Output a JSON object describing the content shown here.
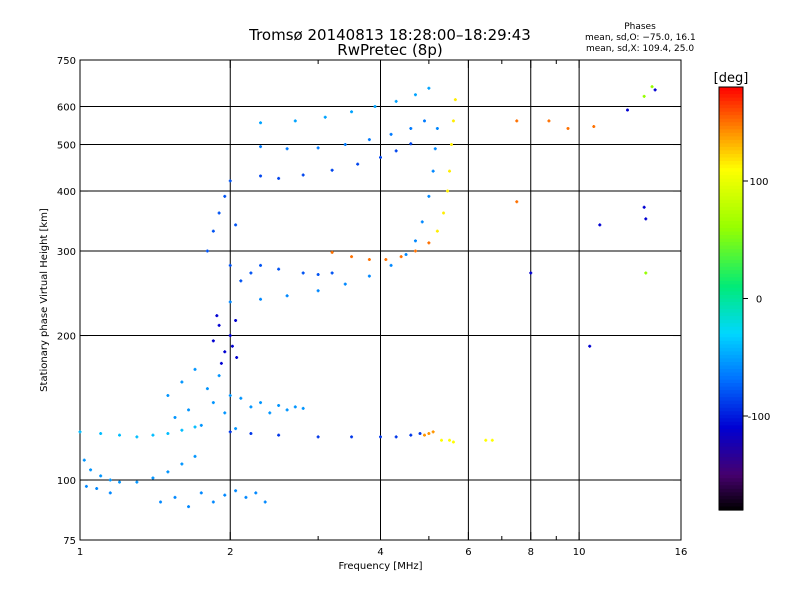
{
  "header": {
    "title_line1": "Tromsø 20140813 18:28:00–18:29:43",
    "title_line2": "RwPretec (8p)",
    "stats_title": "Phases",
    "stats_line1": "mean, sd,O: −75.0, 16.1",
    "stats_line2": "mean, sd,X: 109.4, 25.0"
  },
  "chart_data": {
    "type": "scatter",
    "xlabel": "Frequency [MHz]",
    "ylabel": "Stationary phase Virtual Height [km]",
    "x_scale": "log",
    "y_scale": "log",
    "xlim": [
      1,
      16
    ],
    "ylim": [
      75,
      750
    ],
    "x_ticks": [
      1,
      2,
      4,
      6,
      8,
      10,
      16
    ],
    "x_minor_ticks": [
      3,
      5,
      7,
      9
    ],
    "y_ticks": [
      75,
      100,
      200,
      300,
      400,
      500,
      600,
      750
    ],
    "grid_x": [
      2,
      4,
      6,
      8,
      10
    ],
    "grid_y": [
      100,
      200,
      300,
      400,
      500,
      600
    ],
    "colorbar": {
      "label": "[deg]",
      "range": [
        -180,
        180
      ],
      "ticks": [
        100,
        0,
        -100
      ],
      "colormap": "black-purple-blue-cyan-green-yellow-red"
    },
    "series": [
      {
        "color_deg": -40,
        "points": [
          [
            1.0,
            126
          ],
          [
            1.1,
            125
          ],
          [
            1.2,
            124
          ],
          [
            1.3,
            123
          ],
          [
            1.4,
            124
          ],
          [
            1.5,
            125
          ],
          [
            1.6,
            127
          ],
          [
            1.7,
            129
          ]
        ]
      },
      {
        "color_deg": -55,
        "points": [
          [
            1.02,
            110
          ],
          [
            1.05,
            105
          ],
          [
            1.1,
            102
          ],
          [
            1.15,
            100
          ],
          [
            1.2,
            99
          ],
          [
            1.3,
            99
          ],
          [
            1.4,
            101
          ],
          [
            1.5,
            104
          ],
          [
            1.6,
            108
          ],
          [
            1.7,
            112
          ]
        ]
      },
      {
        "color_deg": -60,
        "points": [
          [
            1.03,
            97
          ],
          [
            1.08,
            96
          ],
          [
            1.15,
            94
          ],
          [
            1.45,
            90
          ],
          [
            1.55,
            92
          ],
          [
            1.65,
            88
          ],
          [
            1.75,
            94
          ],
          [
            1.85,
            90
          ],
          [
            1.95,
            93
          ],
          [
            2.05,
            95
          ],
          [
            2.15,
            92
          ],
          [
            2.25,
            94
          ],
          [
            2.35,
            90
          ]
        ]
      },
      {
        "color_deg": -55,
        "points": [
          [
            1.5,
            150
          ],
          [
            1.55,
            135
          ],
          [
            1.6,
            160
          ],
          [
            1.65,
            140
          ],
          [
            1.7,
            170
          ],
          [
            1.75,
            130
          ],
          [
            1.8,
            155
          ],
          [
            1.85,
            145
          ],
          [
            1.9,
            165
          ],
          [
            1.95,
            138
          ],
          [
            2.0,
            150
          ],
          [
            2.05,
            128
          ],
          [
            2.1,
            148
          ],
          [
            2.2,
            142
          ],
          [
            2.3,
            145
          ],
          [
            2.4,
            138
          ],
          [
            2.5,
            143
          ],
          [
            2.6,
            140
          ],
          [
            2.7,
            142
          ],
          [
            2.8,
            141
          ]
        ]
      },
      {
        "color_deg": -90,
        "points": [
          [
            2.0,
            126
          ],
          [
            2.2,
            125
          ],
          [
            2.5,
            124
          ],
          [
            3.0,
            123
          ],
          [
            3.5,
            123
          ],
          [
            4.0,
            123
          ],
          [
            4.3,
            123
          ],
          [
            4.6,
            124
          ],
          [
            4.8,
            125
          ]
        ]
      },
      {
        "color_deg": 140,
        "points": [
          [
            4.9,
            124
          ],
          [
            5.0,
            125
          ],
          [
            5.1,
            126
          ]
        ]
      },
      {
        "color_deg": 110,
        "points": [
          [
            5.3,
            121
          ],
          [
            5.5,
            121
          ],
          [
            5.6,
            120
          ],
          [
            6.5,
            121
          ],
          [
            6.7,
            121
          ]
        ]
      },
      {
        "color_deg": -110,
        "points": [
          [
            1.85,
            195
          ],
          [
            1.9,
            210
          ],
          [
            1.95,
            185
          ],
          [
            2.0,
            200
          ],
          [
            2.05,
            215
          ],
          [
            1.92,
            175
          ],
          [
            2.02,
            190
          ],
          [
            1.88,
            220
          ],
          [
            2.06,
            180
          ]
        ]
      },
      {
        "color_deg": -80,
        "points": [
          [
            1.8,
            300
          ],
          [
            1.85,
            330
          ],
          [
            1.9,
            360
          ],
          [
            1.95,
            390
          ],
          [
            2.0,
            420
          ],
          [
            2.05,
            340
          ],
          [
            2.0,
            280
          ],
          [
            2.1,
            260
          ],
          [
            2.2,
            270
          ],
          [
            2.3,
            280
          ],
          [
            2.5,
            275
          ],
          [
            2.8,
            270
          ],
          [
            3.0,
            268
          ],
          [
            3.2,
            270
          ]
        ]
      },
      {
        "color_deg": -60,
        "points": [
          [
            2.0,
            235
          ],
          [
            2.3,
            238
          ],
          [
            2.6,
            242
          ],
          [
            3.0,
            248
          ],
          [
            3.4,
            256
          ],
          [
            3.8,
            266
          ],
          [
            4.2,
            280
          ],
          [
            4.5,
            295
          ],
          [
            4.7,
            315
          ],
          [
            4.85,
            345
          ],
          [
            5.0,
            390
          ],
          [
            5.1,
            440
          ],
          [
            5.15,
            490
          ],
          [
            5.2,
            540
          ]
        ]
      },
      {
        "color_deg": 150,
        "points": [
          [
            3.2,
            298
          ],
          [
            3.5,
            292
          ],
          [
            3.8,
            288
          ],
          [
            4.1,
            288
          ],
          [
            4.4,
            292
          ],
          [
            4.7,
            300
          ],
          [
            5.0,
            312
          ]
        ]
      },
      {
        "color_deg": 115,
        "points": [
          [
            5.2,
            330
          ],
          [
            5.35,
            360
          ],
          [
            5.45,
            400
          ],
          [
            5.5,
            440
          ],
          [
            5.55,
            500
          ],
          [
            5.6,
            560
          ],
          [
            5.65,
            620
          ]
        ]
      },
      {
        "color_deg": -85,
        "points": [
          [
            2.3,
            430
          ],
          [
            2.5,
            425
          ],
          [
            2.8,
            432
          ],
          [
            3.2,
            442
          ],
          [
            3.6,
            455
          ],
          [
            4.0,
            470
          ],
          [
            4.3,
            485
          ],
          [
            4.6,
            502
          ]
        ]
      },
      {
        "color_deg": -65,
        "points": [
          [
            2.3,
            495
          ],
          [
            2.6,
            490
          ],
          [
            3.0,
            492
          ],
          [
            3.4,
            500
          ],
          [
            3.8,
            512
          ],
          [
            4.2,
            525
          ],
          [
            4.6,
            540
          ],
          [
            4.9,
            560
          ]
        ]
      },
      {
        "color_deg": -50,
        "points": [
          [
            2.3,
            555
          ],
          [
            2.7,
            560
          ],
          [
            3.1,
            570
          ],
          [
            3.5,
            585
          ],
          [
            3.9,
            600
          ],
          [
            4.3,
            615
          ],
          [
            4.7,
            635
          ],
          [
            5.0,
            655
          ]
        ]
      },
      {
        "color_deg": 150,
        "points": [
          [
            7.5,
            380
          ],
          [
            7.5,
            560
          ],
          [
            8.7,
            560
          ],
          [
            9.5,
            540
          ],
          [
            10.7,
            545
          ]
        ]
      },
      {
        "color_deg": -110,
        "points": [
          [
            8.0,
            270
          ],
          [
            10.5,
            190
          ],
          [
            11.0,
            340
          ],
          [
            12.5,
            590
          ],
          [
            13.5,
            370
          ],
          [
            13.6,
            350
          ],
          [
            14.2,
            650
          ]
        ]
      },
      {
        "color_deg": 60,
        "points": [
          [
            13.5,
            630
          ],
          [
            13.6,
            270
          ],
          [
            14.0,
            660
          ]
        ]
      }
    ]
  }
}
